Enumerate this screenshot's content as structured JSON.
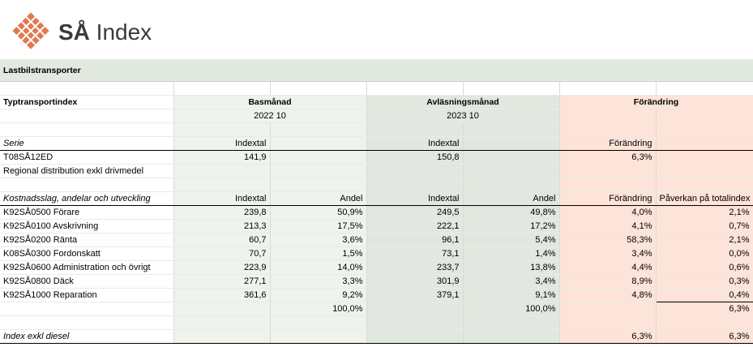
{
  "logo": {
    "text_bold": "SÅ",
    "text_rest": " Index"
  },
  "section": {
    "title": "Lastbilstransporter"
  },
  "table": {
    "header": {
      "col1": "Typtransportindex",
      "basmanad": "Basmånad",
      "avlasning": "Avläsningsmånad",
      "forandring": "Förändring"
    },
    "months": {
      "base": "2022 10",
      "reading": "2023 10"
    },
    "serie_header": {
      "label": "Serie",
      "base": "Indextal",
      "reading": "Indextal",
      "change": "Förändring"
    },
    "serie": {
      "code": "T08SÅ12ED",
      "base": "141,9",
      "reading": "150,8",
      "change": "6,3%"
    },
    "serie_desc": "Regional distribution exkl drivmedel",
    "cost_header": {
      "label": "Kostnadsslag, andelar och utveckling",
      "base_index": "Indextal",
      "base_share": "Andel",
      "read_index": "Indextal",
      "read_share": "Andel",
      "change": "Förändring",
      "impact": "Påverkan på totalindex"
    },
    "rows": [
      {
        "name": "K92SÅ0500 Förare",
        "bi": "239,8",
        "bs": "50,9%",
        "ri": "249,5",
        "rs": "49,8%",
        "ch": "4,0%",
        "im": "2,1%"
      },
      {
        "name": "K92SÅ0100 Avskrivning",
        "bi": "213,3",
        "bs": "17,5%",
        "ri": "222,1",
        "rs": "17,2%",
        "ch": "4,1%",
        "im": "0,7%"
      },
      {
        "name": "K92SÅ0200 Ränta",
        "bi": "60,7",
        "bs": "3,6%",
        "ri": "96,1",
        "rs": "5,4%",
        "ch": "58,3%",
        "im": "2,1%"
      },
      {
        "name": "K08SÅ0300 Fordonskatt",
        "bi": "70,7",
        "bs": "1,5%",
        "ri": "73,1",
        "rs": "1,4%",
        "ch": "3,4%",
        "im": "0,0%"
      },
      {
        "name": "K92SÅ0600 Administration och övrigt",
        "bi": "223,9",
        "bs": "14,0%",
        "ri": "233,7",
        "rs": "13,8%",
        "ch": "4,4%",
        "im": "0,6%"
      },
      {
        "name": "K92SÅ0800 Däck",
        "bi": "277,1",
        "bs": "3,3%",
        "ri": "301,9",
        "rs": "3,4%",
        "ch": "8,9%",
        "im": "0,3%"
      },
      {
        "name": "K92SÅ1000 Reparation",
        "bi": "361,6",
        "bs": "9,2%",
        "ri": "379,1",
        "rs": "9,1%",
        "ch": "4,8%",
        "im": "0,4%"
      }
    ],
    "totals": {
      "bs": "100,0%",
      "rs": "100,0%",
      "im": "6,3%"
    },
    "exkl": {
      "label": "Index exkl diesel",
      "ch": "6,3%",
      "im": "6,3%"
    }
  }
}
